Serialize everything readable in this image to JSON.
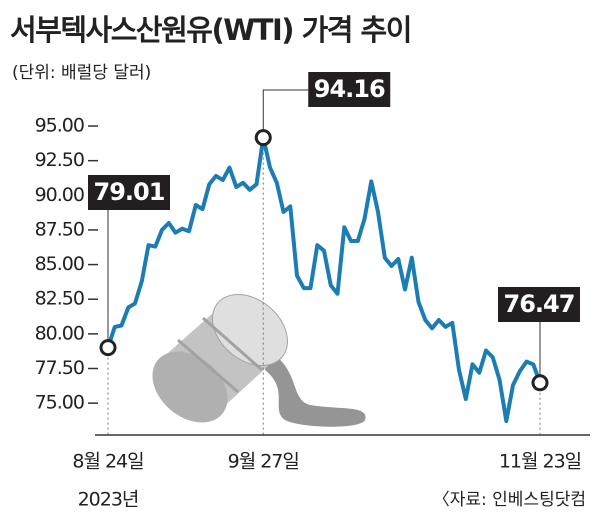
{
  "chart_data": {
    "type": "line",
    "title": "서부텍사스산원유(WTI) 가격 추이",
    "subtitle": "(단위: 배럴당 달러)",
    "source": "〈자료: 인베스팅닷컴",
    "x_year_label": "2023년",
    "categories": [
      "8월 24일",
      null,
      null,
      null,
      null,
      null,
      null,
      null,
      null,
      null,
      null,
      null,
      null,
      null,
      null,
      null,
      null,
      null,
      null,
      null,
      null,
      null,
      null,
      "9월 27일",
      null,
      null,
      null,
      null,
      null,
      null,
      null,
      null,
      null,
      null,
      null,
      null,
      null,
      null,
      null,
      null,
      null,
      null,
      null,
      null,
      null,
      null,
      null,
      null,
      null,
      null,
      null,
      null,
      null,
      null,
      null,
      null,
      null,
      null,
      null,
      null,
      null,
      null,
      null,
      null,
      "11월 23일"
    ],
    "series": [
      {
        "color": "#1b7db4",
        "values": [
          79.01,
          80.5,
          80.6,
          81.9,
          82.2,
          83.8,
          86.4,
          86.3,
          87.5,
          88.0,
          87.3,
          87.6,
          87.4,
          89.3,
          89.0,
          90.8,
          91.4,
          91.1,
          92.0,
          90.6,
          90.9,
          90.4,
          90.8,
          94.16,
          92.0,
          90.9,
          88.8,
          89.2,
          84.2,
          83.3,
          83.3,
          86.4,
          86.0,
          83.5,
          82.9,
          87.7,
          86.7,
          86.7,
          88.3,
          91.0,
          88.8,
          85.5,
          84.9,
          85.4,
          83.2,
          85.5,
          82.3,
          81.0,
          80.4,
          81.0,
          80.5,
          80.8,
          77.4,
          75.3,
          77.8,
          77.2,
          78.8,
          78.3,
          76.7,
          73.7,
          76.3,
          77.3,
          78.0,
          77.8,
          76.47
        ],
        "value_labels": [
          "79.01",
          null,
          null,
          null,
          null,
          null,
          null,
          null,
          null,
          null,
          null,
          null,
          null,
          null,
          null,
          null,
          null,
          null,
          null,
          null,
          null,
          null,
          null,
          "94.16",
          null,
          null,
          null,
          null,
          null,
          null,
          null,
          null,
          null,
          null,
          null,
          null,
          null,
          null,
          null,
          null,
          null,
          null,
          null,
          null,
          null,
          null,
          null,
          null,
          null,
          null,
          null,
          null,
          null,
          null,
          null,
          null,
          null,
          null,
          null,
          null,
          null,
          null,
          null,
          null,
          "76.47"
        ]
      }
    ],
    "ylim": [
      72.7,
      96.2
    ],
    "yticks": [
      {
        "value": 75,
        "label": "75.00"
      },
      {
        "value": 77.5,
        "label": "77.50"
      },
      {
        "value": 80,
        "label": "80.00"
      },
      {
        "value": 82.5,
        "label": "82.50"
      },
      {
        "value": 85,
        "label": "85.00"
      },
      {
        "value": 87.5,
        "label": "87.50"
      },
      {
        "value": 90,
        "label": "90.00"
      },
      {
        "value": 92.5,
        "label": "92.50"
      },
      {
        "value": 95,
        "label": "95.00"
      }
    ]
  }
}
